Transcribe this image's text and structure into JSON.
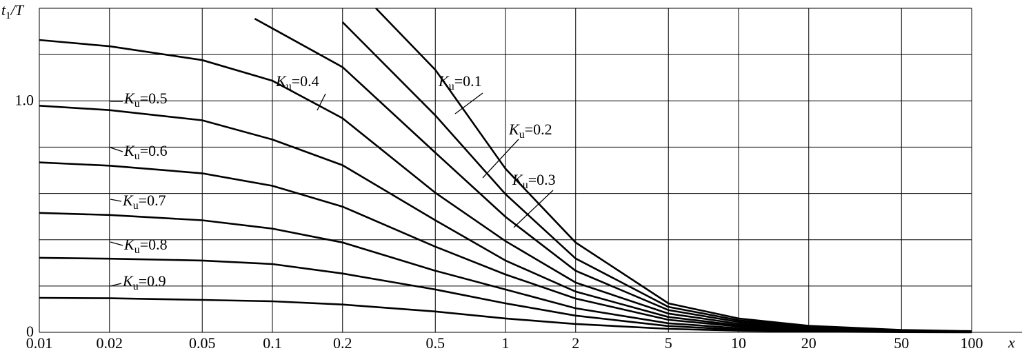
{
  "chart_data": {
    "type": "line",
    "x_label": "x",
    "y_label_parts": [
      "t",
      "1",
      "/T"
    ],
    "log_x": true,
    "grid": true,
    "xlim": [
      0.01,
      100
    ],
    "ylim": [
      0,
      1.4
    ],
    "xticks": [
      0.01,
      0.02,
      0.05,
      0.1,
      0.2,
      0.5,
      1,
      2,
      5,
      10,
      20,
      50,
      100
    ],
    "yticks": [
      0,
      {
        "value": 1,
        "label": "1.0"
      }
    ],
    "y_gridlines": [
      0.2,
      0.4,
      0.6,
      0.8,
      1.2
    ],
    "color": "#000000",
    "series": [
      {
        "name_parts": [
          "K",
          "u",
          "=0.1"
        ],
        "x": [
          0.278,
          0.5,
          1,
          2,
          5,
          10,
          20,
          50,
          100
        ],
        "values": [
          1.4,
          1.134,
          0.707,
          0.388,
          0.125,
          0.06,
          0.028,
          0.01,
          0.005
        ]
      },
      {
        "name_parts": [
          "K",
          "u",
          "=0.2"
        ],
        "x": [
          0.2,
          0.5,
          1,
          2,
          5,
          10,
          20,
          50,
          100
        ],
        "values": [
          1.34,
          0.937,
          0.597,
          0.319,
          0.11,
          0.052,
          0.024,
          0.008,
          0.004
        ]
      },
      {
        "name_parts": [
          "K",
          "u",
          "=0.3"
        ],
        "x": [
          0.084,
          0.1,
          0.2,
          0.5,
          1,
          2,
          5,
          10,
          20,
          50,
          100
        ],
        "values": [
          1.355,
          1.313,
          1.146,
          0.776,
          0.499,
          0.266,
          0.096,
          0.045,
          0.02,
          0.007,
          0.003
        ]
      },
      {
        "name_parts": [
          "K",
          "u",
          "=0.4"
        ],
        "x": [
          0.01,
          0.02,
          0.05,
          0.1,
          0.2,
          0.5,
          1,
          2,
          5,
          10,
          20,
          50,
          100
        ],
        "values": [
          1.263,
          1.236,
          1.176,
          1.087,
          0.925,
          0.603,
          0.394,
          0.215,
          0.081,
          0.037,
          0.017,
          0.006,
          0.003
        ]
      },
      {
        "name_parts": [
          "K",
          "u",
          "=0.5"
        ],
        "x": [
          0.01,
          0.02,
          0.05,
          0.1,
          0.2,
          0.5,
          1,
          2,
          5,
          10,
          20,
          50,
          100
        ],
        "values": [
          0.979,
          0.96,
          0.916,
          0.833,
          0.722,
          0.484,
          0.31,
          0.176,
          0.066,
          0.03,
          0.014,
          0.005,
          0.002
        ]
      },
      {
        "name_parts": [
          "K",
          "u",
          "=0.6"
        ],
        "x": [
          0.01,
          0.02,
          0.05,
          0.1,
          0.2,
          0.5,
          1,
          2,
          5,
          10,
          20,
          50,
          100
        ],
        "values": [
          0.734,
          0.72,
          0.687,
          0.633,
          0.543,
          0.37,
          0.25,
          0.146,
          0.054,
          0.025,
          0.011,
          0.004,
          0.002
        ]
      },
      {
        "name_parts": [
          "K",
          "u",
          "=0.7"
        ],
        "x": [
          0.01,
          0.02,
          0.05,
          0.1,
          0.2,
          0.5,
          1,
          2,
          5,
          10,
          20,
          50,
          100
        ],
        "values": [
          0.516,
          0.507,
          0.484,
          0.448,
          0.388,
          0.266,
          0.185,
          0.104,
          0.039,
          0.018,
          0.008,
          0.003,
          0.001
        ]
      },
      {
        "name_parts": [
          "K",
          "u",
          "=0.8"
        ],
        "x": [
          0.01,
          0.02,
          0.05,
          0.1,
          0.2,
          0.5,
          1,
          2,
          5,
          10,
          20,
          50,
          100
        ],
        "values": [
          0.322,
          0.318,
          0.31,
          0.295,
          0.254,
          0.185,
          0.125,
          0.072,
          0.027,
          0.012,
          0.005,
          0.002,
          0.001
        ]
      },
      {
        "name_parts": [
          "K",
          "u",
          "=0.9"
        ],
        "x": [
          0.01,
          0.02,
          0.05,
          0.1,
          0.2,
          0.5,
          1,
          2,
          5,
          10,
          20,
          50,
          100
        ],
        "values": [
          0.149,
          0.147,
          0.14,
          0.134,
          0.12,
          0.09,
          0.06,
          0.036,
          0.015,
          0.007,
          0.003,
          0.001,
          0
        ]
      }
    ]
  }
}
